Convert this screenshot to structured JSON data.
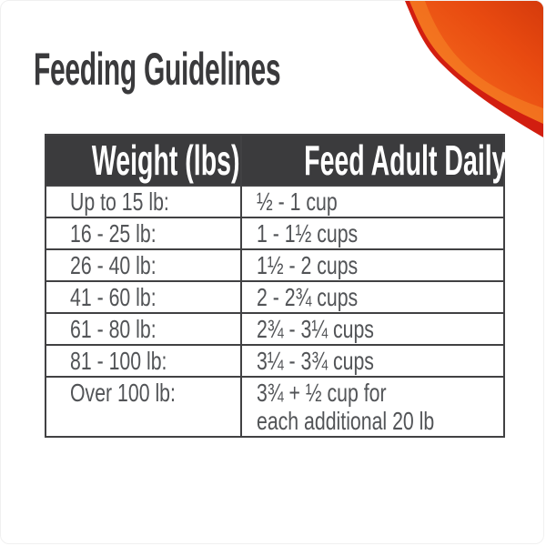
{
  "page": {
    "title": "Feeding Guidelines"
  },
  "chart_data": {
    "type": "table",
    "title": "Feeding Guidelines",
    "columns": [
      "Weight (lbs)",
      "Feed Adult Daily"
    ],
    "rows": [
      [
        "Up to 15 lb:",
        "½ - 1 cup"
      ],
      [
        "16 - 25 lb:",
        "1 - 1½ cups"
      ],
      [
        "26 - 40 lb:",
        "1½ - 2 cups"
      ],
      [
        "41 - 60 lb:",
        "2 - 2¾ cups"
      ],
      [
        "61 - 80 lb:",
        "2¾ - 3¼ cups"
      ],
      [
        "81 - 100 lb:",
        "3¼ - 3¾ cups"
      ],
      [
        "Over 100 lb:",
        "3¾ + ½ cup for\neach additional 20 lb"
      ]
    ]
  },
  "colors": {
    "title_text": "#3a3a3c",
    "header_bg": "#3b3b3d",
    "header_text": "#ffffff",
    "body_text": "#525457",
    "table_border": "#414143",
    "swoosh_orange_bright": "#f6871f",
    "swoosh_orange_mid": "#ee5a16",
    "swoosh_orange_deep": "#d53a0c",
    "swoosh_red_edge": "#d21e10",
    "background": "#ffffff"
  }
}
